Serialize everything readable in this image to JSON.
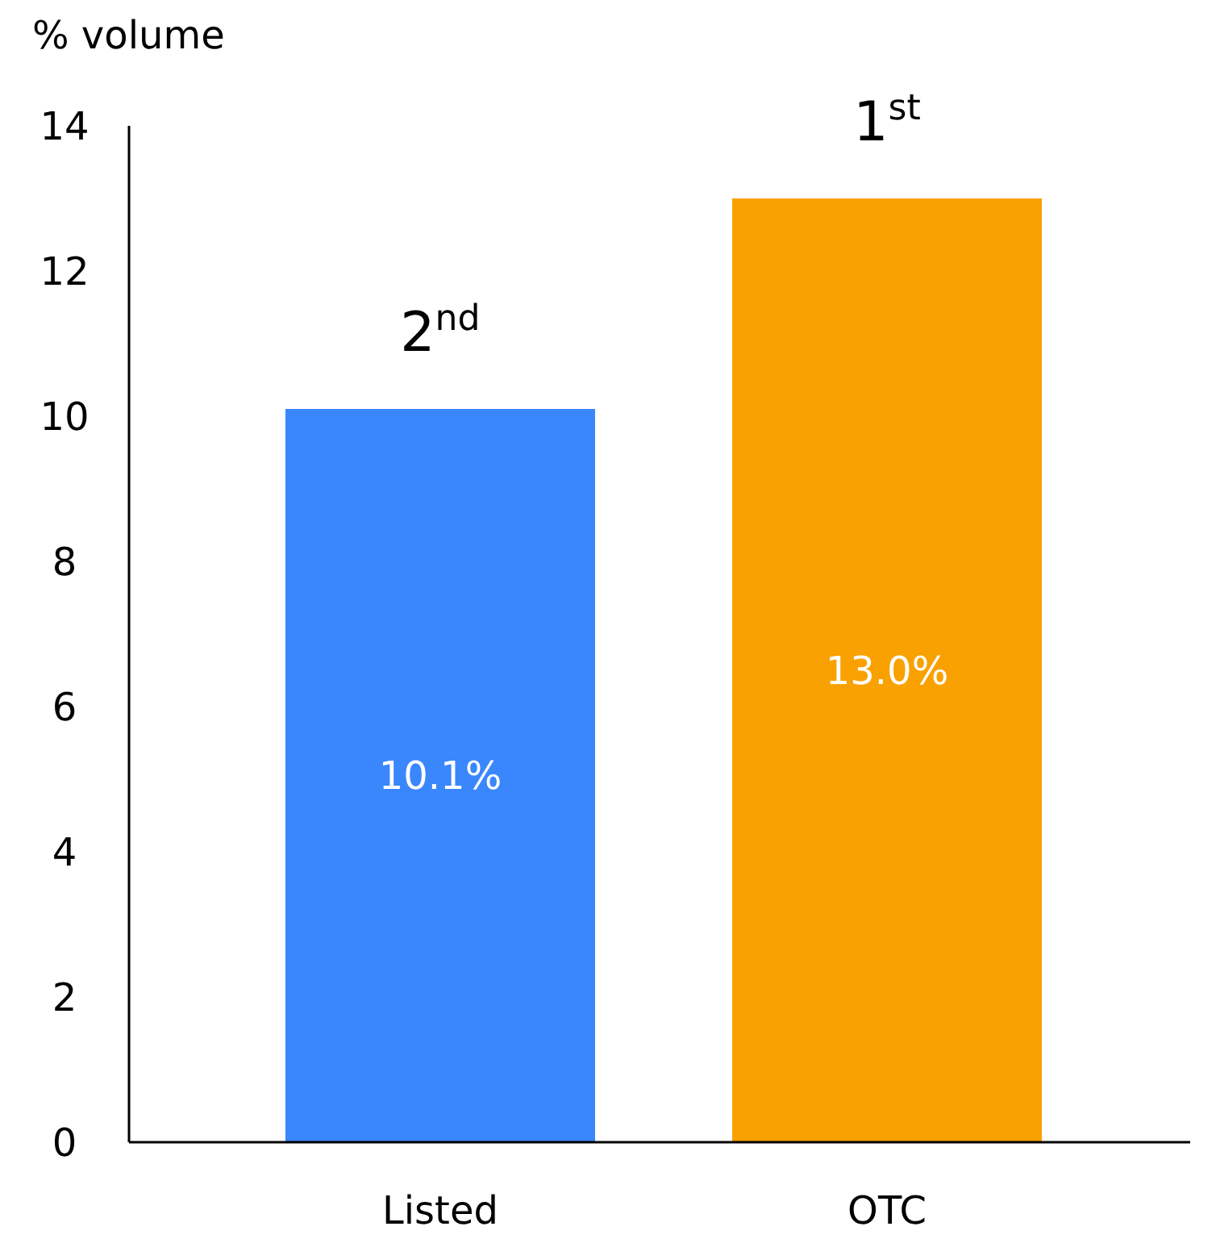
{
  "chart_data": {
    "type": "bar",
    "ylabel": "% volume",
    "categories": [
      "Listed",
      "OTC"
    ],
    "values": [
      10.1,
      13.0
    ],
    "colors": [
      "#3a87fd",
      "#f9a100"
    ],
    "value_labels": [
      "10.1%",
      "13.0%"
    ],
    "ylim": [
      0,
      14
    ],
    "yticks": [
      0,
      2,
      4,
      6,
      8,
      10,
      12,
      14
    ],
    "grid": false,
    "annotations": [
      {
        "text": "2$^{nd}$",
        "x": "Listed",
        "y": 10.1
      },
      {
        "text": "1$^{st}$",
        "x": "OTC",
        "y": 13.0
      }
    ]
  }
}
